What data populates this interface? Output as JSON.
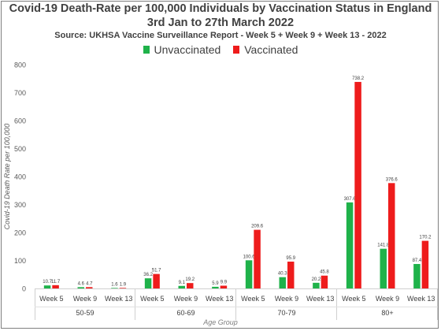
{
  "title": "Covid-19 Death-Rate per 100,000 Individuals by Vaccination Status in England",
  "subtitle": "3rd Jan to 27th March 2022",
  "source": "Source: UKHSA Vaccine Surveillance Report - Week 5 + Week 9 + Week 13 - 2022",
  "chart_data": {
    "type": "bar",
    "title": "Covid-19 Death-Rate per 100,000 Individuals by Vaccination Status in England",
    "subtitle": "3rd Jan to 27th March 2022",
    "xlabel": "Age Group",
    "ylabel": "Covid-19 Death Rate per 100,000",
    "ylim": [
      0,
      800
    ],
    "yticks": [
      0,
      100,
      200,
      300,
      400,
      500,
      600,
      700,
      800
    ],
    "grid": false,
    "legend_position": "top-center",
    "groups": [
      {
        "label": "50-59",
        "categories": [
          "Week 5",
          "Week 9",
          "Week 13"
        ]
      },
      {
        "label": "60-69",
        "categories": [
          "Week 5",
          "Week 9",
          "Week 13"
        ]
      },
      {
        "label": "70-79",
        "categories": [
          "Week 5",
          "Week 9",
          "Week 13"
        ]
      },
      {
        "label": "80+",
        "categories": [
          "Week 5",
          "Week 9",
          "Week 13"
        ]
      }
    ],
    "series": [
      {
        "name": "Unvaccinated",
        "color": "#1fb24a",
        "values": [
          10.7,
          4.6,
          1.6,
          36.2,
          9.1,
          5.9,
          100.6,
          40.3,
          20.2,
          307.6,
          141.8,
          87.4
        ],
        "labels": [
          "10.7",
          "4.6",
          "1.6",
          "36.2",
          "9.1",
          "5.9",
          "100.6",
          "40.3",
          "20.2",
          "307.6",
          "141.8",
          "87.4"
        ]
      },
      {
        "name": "Vaccinated",
        "color": "#ee1c1c",
        "values": [
          11.7,
          4.7,
          1.9,
          51.7,
          19.2,
          9.9,
          209.6,
          95.9,
          45.8,
          738.2,
          376.6,
          170.2
        ],
        "labels": [
          "11.7",
          "4.7",
          "1.9",
          "51.7",
          "19.2",
          "9.9",
          "209.6",
          "95.9",
          "45.8",
          "738.2",
          "376.6",
          "170.2"
        ]
      }
    ]
  }
}
